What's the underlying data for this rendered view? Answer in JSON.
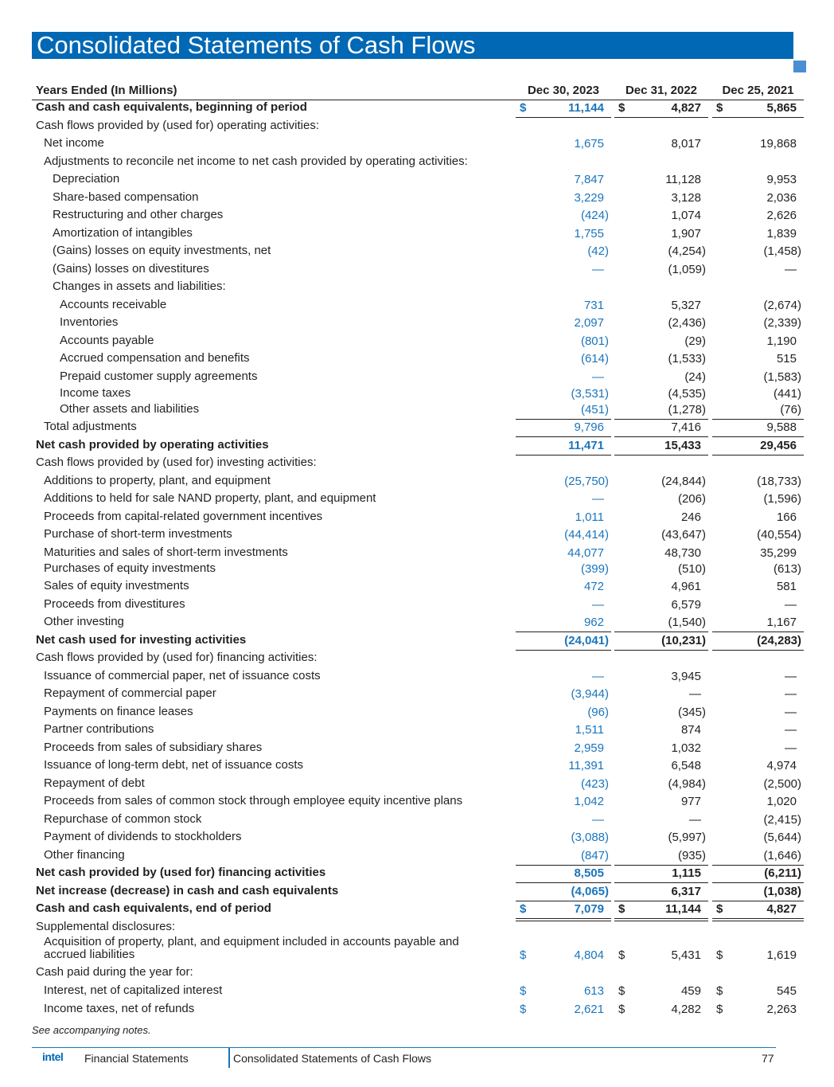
{
  "header": {
    "title": "Consolidated Statements of Cash Flows"
  },
  "table": {
    "columns": [
      "Years Ended (In Millions)",
      "Dec 30, 2023",
      "Dec 31, 2022",
      "Dec 25, 2021"
    ],
    "rows": [
      {
        "label": "Cash and cash equivalents, beginning of period",
        "currency": [
          "$",
          "$",
          "$"
        ],
        "values": [
          "11,144",
          "4,827",
          "5,865"
        ]
      },
      {
        "label": "Cash flows provided by (used for) operating activities:"
      },
      {
        "label": "Net income",
        "values": [
          "1,675",
          "8,017",
          "19,868"
        ]
      },
      {
        "label": "Adjustments to reconcile net income to net cash provided by operating activities:"
      },
      {
        "label": "Depreciation",
        "values": [
          "7,847",
          "11,128",
          "9,953"
        ]
      },
      {
        "label": "Share-based compensation",
        "values": [
          "3,229",
          "3,128",
          "2,036"
        ]
      },
      {
        "label": "Restructuring and other charges",
        "values": [
          "(424)",
          "1,074",
          "2,626"
        ]
      },
      {
        "label": "Amortization of intangibles",
        "values": [
          "1,755",
          "1,907",
          "1,839"
        ]
      },
      {
        "label": "(Gains) losses on equity investments, net",
        "values": [
          "(42)",
          "(4,254)",
          "(1,458)"
        ]
      },
      {
        "label": "(Gains) losses on divestitures",
        "values": [
          "—",
          "(1,059)",
          "—"
        ]
      },
      {
        "label": "Changes in assets and liabilities:"
      },
      {
        "label": "Accounts receivable",
        "values": [
          "731",
          "5,327",
          "(2,674)"
        ]
      },
      {
        "label": "Inventories",
        "values": [
          "2,097",
          "(2,436)",
          "(2,339)"
        ]
      },
      {
        "label": "Accounts payable",
        "values": [
          "(801)",
          "(29)",
          "1,190"
        ]
      },
      {
        "label": "Accrued compensation and benefits",
        "values": [
          "(614)",
          "(1,533)",
          "515"
        ]
      },
      {
        "label": "Prepaid customer supply agreements",
        "values": [
          "—",
          "(24)",
          "(1,583)"
        ]
      },
      {
        "label": "Income taxes",
        "values": [
          "(3,531)",
          "(4,535)",
          "(441)"
        ]
      },
      {
        "label": "Other assets and liabilities",
        "values": [
          "(451)",
          "(1,278)",
          "(76)"
        ]
      },
      {
        "label": "Total adjustments",
        "values": [
          "9,796",
          "7,416",
          "9,588"
        ]
      },
      {
        "label": "Net cash provided by operating activities",
        "values": [
          "11,471",
          "15,433",
          "29,456"
        ]
      },
      {
        "label": "Cash flows provided by (used for) investing activities:"
      },
      {
        "label": "Additions to property, plant, and equipment",
        "values": [
          "(25,750)",
          "(24,844)",
          "(18,733)"
        ]
      },
      {
        "label": "Additions to held for sale NAND property, plant, and equipment",
        "values": [
          "—",
          "(206)",
          "(1,596)"
        ]
      },
      {
        "label": "Proceeds from capital-related government incentives",
        "values": [
          "1,011",
          "246",
          "166"
        ]
      },
      {
        "label": "Purchase of short-term investments",
        "values": [
          "(44,414)",
          "(43,647)",
          "(40,554)"
        ]
      },
      {
        "label": "Maturities and sales of short-term investments",
        "values": [
          "44,077",
          "48,730",
          "35,299"
        ]
      },
      {
        "label": "Purchases of equity investments",
        "values": [
          "(399)",
          "(510)",
          "(613)"
        ]
      },
      {
        "label": "Sales of equity investments",
        "values": [
          "472",
          "4,961",
          "581"
        ]
      },
      {
        "label": "Proceeds from divestitures",
        "values": [
          "—",
          "6,579",
          "—"
        ]
      },
      {
        "label": "Other investing",
        "values": [
          "962",
          "(1,540)",
          "1,167"
        ]
      },
      {
        "label": "Net cash used for investing activities",
        "values": [
          "(24,041)",
          "(10,231)",
          "(24,283)"
        ]
      },
      {
        "label": "Cash flows provided by (used for) financing activities:"
      },
      {
        "label": "Issuance of commercial paper, net of issuance costs",
        "values": [
          "—",
          "3,945",
          "—"
        ]
      },
      {
        "label": "Repayment of commercial paper",
        "values": [
          "(3,944)",
          "—",
          "—"
        ]
      },
      {
        "label": "Payments on finance leases",
        "values": [
          "(96)",
          "(345)",
          "—"
        ]
      },
      {
        "label": "Partner contributions",
        "values": [
          "1,511",
          "874",
          "—"
        ]
      },
      {
        "label": "Proceeds from sales of subsidiary shares",
        "values": [
          "2,959",
          "1,032",
          "—"
        ]
      },
      {
        "label": "Issuance of long-term debt, net of issuance costs",
        "values": [
          "11,391",
          "6,548",
          "4,974"
        ]
      },
      {
        "label": "Repayment of debt",
        "values": [
          "(423)",
          "(4,984)",
          "(2,500)"
        ]
      },
      {
        "label": "Proceeds from sales of common stock through employee equity incentive plans",
        "values": [
          "1,042",
          "977",
          "1,020"
        ]
      },
      {
        "label": "Repurchase of common stock",
        "values": [
          "—",
          "—",
          "(2,415)"
        ]
      },
      {
        "label": "Payment of dividends to stockholders",
        "values": [
          "(3,088)",
          "(5,997)",
          "(5,644)"
        ]
      },
      {
        "label": "Other financing",
        "values": [
          "(847)",
          "(935)",
          "(1,646)"
        ]
      },
      {
        "label": "Net cash provided by (used for) financing activities",
        "values": [
          "8,505",
          "1,115",
          "(6,211)"
        ]
      },
      {
        "label": "Net increase (decrease) in cash and cash equivalents",
        "values": [
          "(4,065)",
          "6,317",
          "(1,038)"
        ]
      },
      {
        "label": "Cash and cash equivalents, end of period",
        "currency": [
          "$",
          "$",
          "$"
        ],
        "values": [
          "7,079",
          "11,144",
          "4,827"
        ]
      },
      {
        "label": "Supplemental disclosures:"
      },
      {
        "label": "Acquisition of property, plant, and equipment included in accounts payable and accrued liabilities",
        "currency": [
          "$",
          "$",
          "$"
        ],
        "values": [
          "4,804",
          "5,431",
          "1,619"
        ]
      },
      {
        "label": "Cash paid during the year for:"
      },
      {
        "label": "Interest, net of capitalized interest",
        "currency": [
          "$",
          "$",
          "$"
        ],
        "values": [
          "613",
          "459",
          "545"
        ]
      },
      {
        "label": "Income taxes, net of refunds",
        "currency": [
          "$",
          "$",
          "$"
        ],
        "values": [
          "2,621",
          "4,282",
          "2,263"
        ]
      }
    ]
  },
  "note": "See accompanying notes.",
  "footer": {
    "logo": "intel",
    "section": "Financial Statements",
    "title": "Consolidated Statements of Cash Flows",
    "page": "77"
  }
}
